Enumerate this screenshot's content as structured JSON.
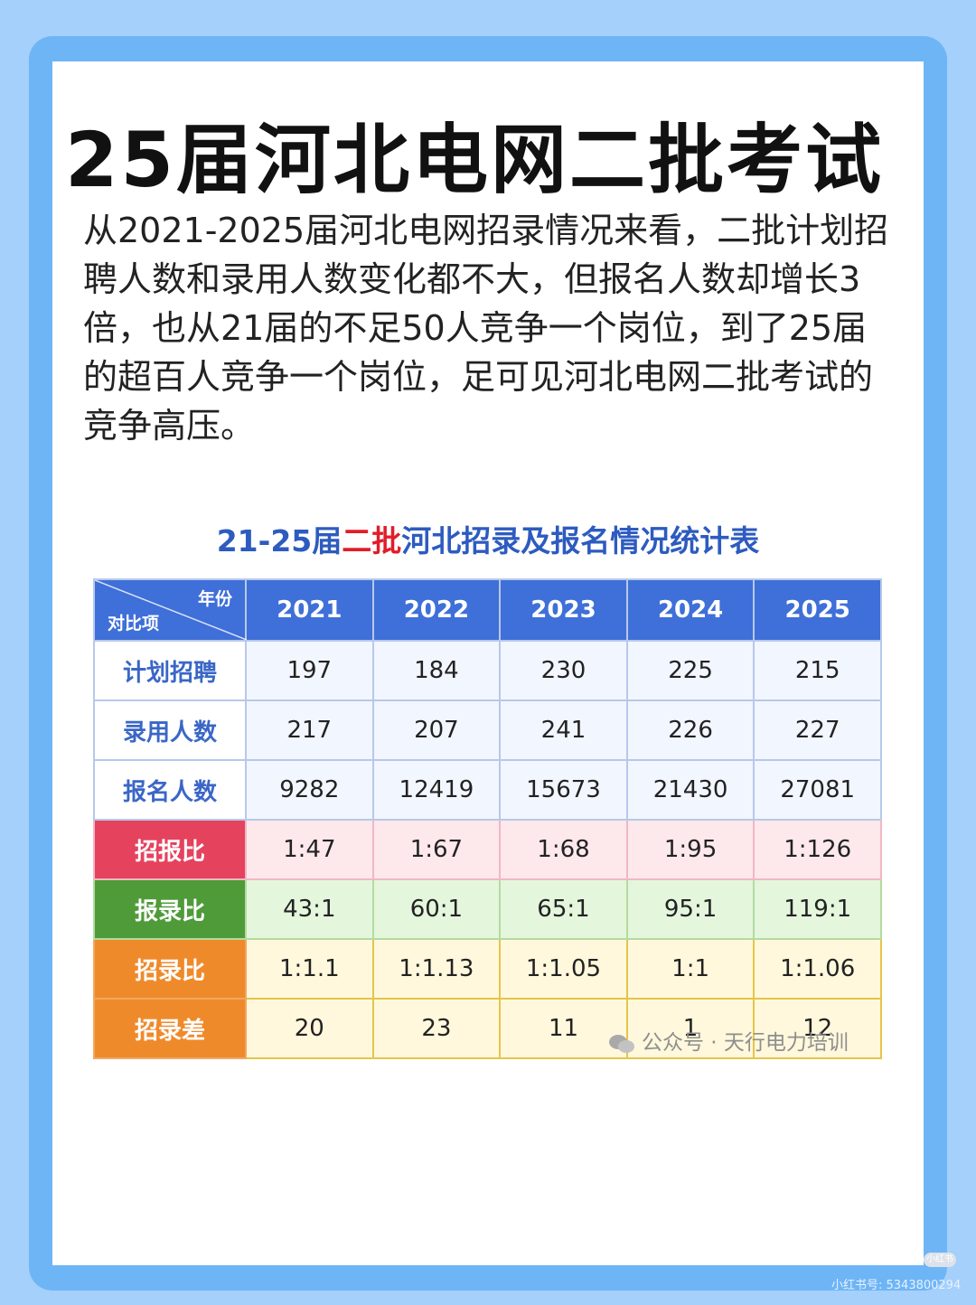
{
  "title": "25届河北电网二批考试",
  "intro": "从2021-2025届河北电网招录情况来看，二批计划招聘人数和录用人数变化都不大，但报名人数却增长3倍，也从21届的不足50人竞争一个岗位，到了25届的超百人竞争一个岗位，足可见河北电网二批考试的竞争高压。",
  "table": {
    "title_prefix": "21-25届",
    "title_highlight": "二批",
    "title_suffix": "河北招录及报名情况统计表",
    "corner_year": "年份",
    "corner_item": "对比项",
    "years": [
      "2021",
      "2022",
      "2023",
      "2024",
      "2025"
    ],
    "rows": [
      {
        "label": "计划招聘",
        "values": [
          "197",
          "184",
          "230",
          "225",
          "215"
        ]
      },
      {
        "label": "录用人数",
        "values": [
          "217",
          "207",
          "241",
          "226",
          "227"
        ]
      },
      {
        "label": "报名人数",
        "values": [
          "9282",
          "12419",
          "15673",
          "21430",
          "27081"
        ]
      },
      {
        "label": "招报比",
        "values": [
          "1:47",
          "1:67",
          "1:68",
          "1:95",
          "1:126"
        ]
      },
      {
        "label": "报录比",
        "values": [
          "43:1",
          "60:1",
          "65:1",
          "95:1",
          "119:1"
        ]
      },
      {
        "label": "招录比",
        "values": [
          "1:1.1",
          "1:1.13",
          "1:1.05",
          "1:1",
          "1:1.06"
        ]
      },
      {
        "label": "招录差",
        "values": [
          "20",
          "23",
          "11",
          "1",
          "12"
        ]
      }
    ]
  },
  "watermark": "公众号 · 天行电力培训",
  "xhs": {
    "logo": "小红书",
    "id": "小红书号: 5343800294"
  },
  "colors": {
    "frame": "#6eb5f6",
    "header": "#3f6fd8",
    "red": "#e5425e",
    "green": "#4f9b3a",
    "orange": "#ef8a2b"
  }
}
